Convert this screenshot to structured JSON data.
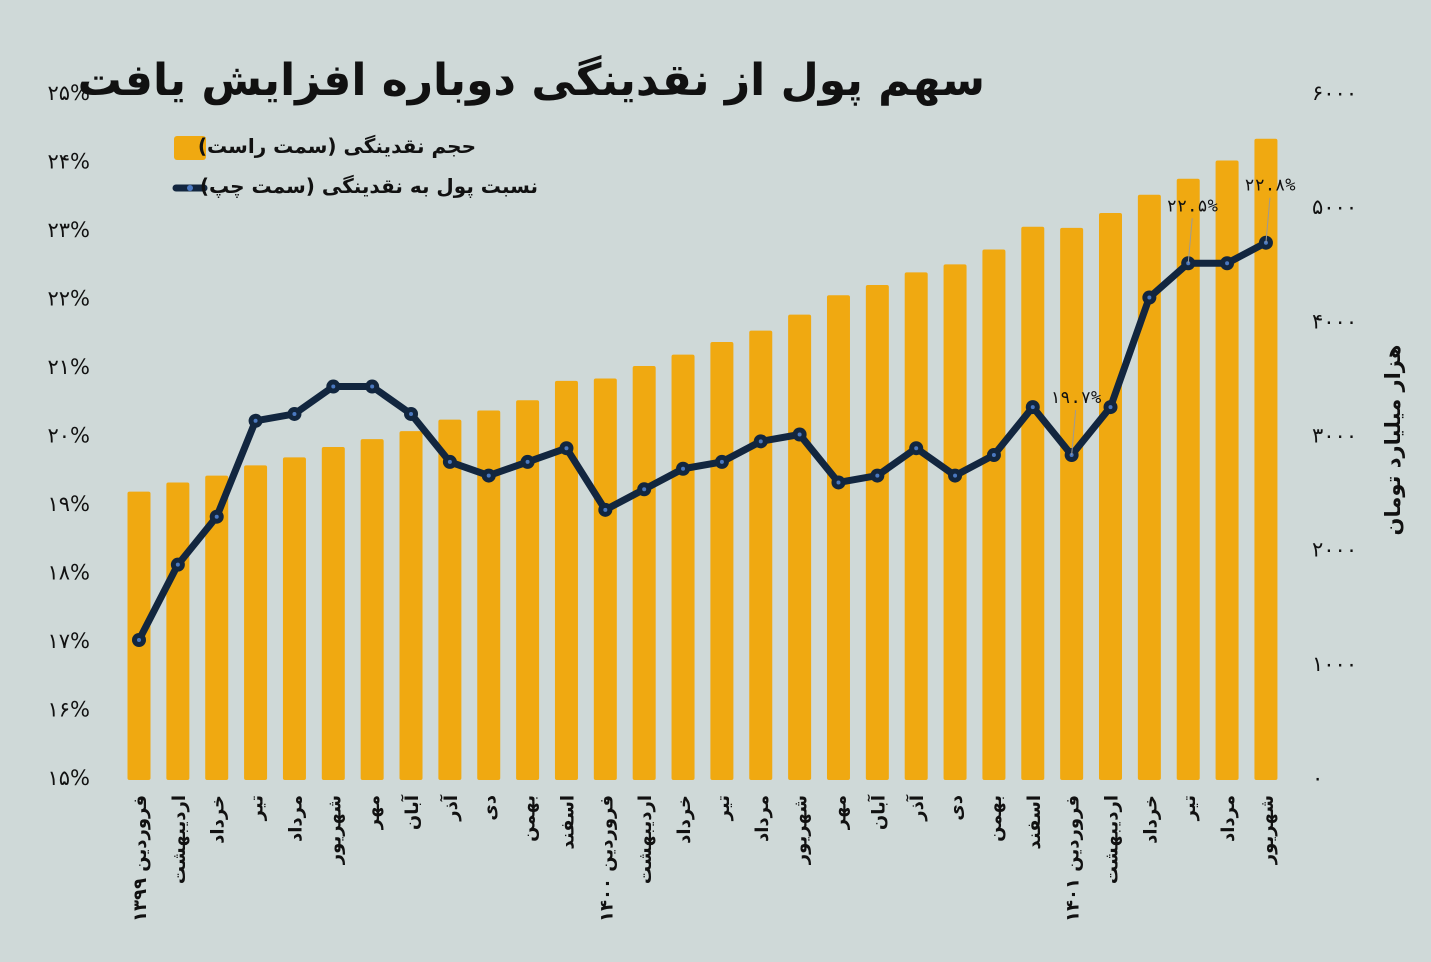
{
  "chart_data": {
    "type": "bar+line",
    "title": "سهم پول از نقدینگی دوباره افزایش یافت",
    "categories": [
      "فروردین ۱۳۹۹",
      "اردیبهشت",
      "خرداد",
      "تیر",
      "مرداد",
      "شهریور",
      "مهر",
      "آبان",
      "آذر",
      "دی",
      "بهمن",
      "اسفند",
      "فروردین ۱۴۰۰",
      "اردیبهشت",
      "خرداد",
      "تیر",
      "مرداد",
      "شهریور",
      "مهر",
      "آبان",
      "آذر",
      "دی",
      "بهمن",
      "اسفند",
      "فروردین ۱۴۰۱",
      "اردیبهشت",
      "خرداد",
      "تیر",
      "مرداد",
      "شهریور"
    ],
    "series": [
      {
        "name": "حجم نقدینگی (سمت راست)",
        "type": "bar",
        "axis": "right",
        "color": "#f0a911",
        "values": [
          2500,
          2580,
          2640,
          2730,
          2800,
          2890,
          2960,
          3030,
          3130,
          3210,
          3300,
          3470,
          3490,
          3600,
          3700,
          3810,
          3910,
          4050,
          4220,
          4310,
          4420,
          4490,
          4620,
          4820,
          4810,
          4940,
          5100,
          5240,
          5400,
          5590
        ]
      },
      {
        "name": "نسبت پول به نقدینگی (سمت چپ)",
        "type": "line",
        "axis": "left",
        "color": "#12263f",
        "values": [
          17.0,
          18.1,
          18.8,
          20.2,
          20.3,
          20.7,
          20.7,
          20.3,
          19.6,
          19.4,
          19.6,
          19.8,
          18.9,
          19.2,
          19.5,
          19.6,
          19.9,
          20.0,
          19.3,
          19.4,
          19.8,
          19.4,
          19.7,
          20.4,
          19.7,
          20.4,
          22.0,
          22.5,
          22.5,
          22.8
        ]
      }
    ],
    "data_labels": [
      {
        "index": 24,
        "text": "۱۹.۷%"
      },
      {
        "index": 27,
        "text": "۲۲.۵%"
      },
      {
        "index": 29,
        "text": "۲۲.۸%"
      }
    ],
    "left_axis": {
      "range": [
        15,
        25
      ],
      "ticks": [
        "۱۵%",
        "۱۶%",
        "۱۷%",
        "۱۸%",
        "۱۹%",
        "۲۰%",
        "۲۱%",
        "۲۲%",
        "۲۳%",
        "۲۴%",
        "۲۵%"
      ]
    },
    "right_axis": {
      "range": [
        0,
        6000
      ],
      "label": "هزار میلیارد تومان",
      "ticks": [
        "۰",
        "۱۰۰۰",
        "۲۰۰۰",
        "۳۰۰۰",
        "۴۰۰۰",
        "۵۰۰۰",
        "۶۰۰۰"
      ]
    },
    "legend_placement": "top-left",
    "grid": false,
    "background": "#cfd9d8"
  }
}
